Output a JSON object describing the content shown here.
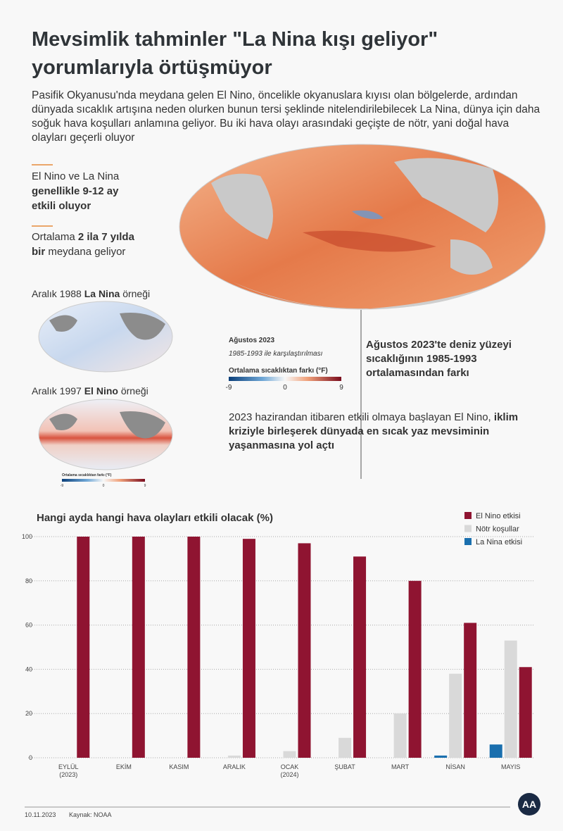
{
  "header": {
    "title": "Mevsimlik tahminler \"La Nina kışı geliyor\" yorumlarıyla örtüşmüyor",
    "intro": "Pasifik Okyanusu'nda meydana gelen El Nino, öncelikle okyanuslara kıyısı olan bölgelerde, ardından dünyada sıcaklık artışına neden olurken bunun tersi şeklinde nitelendirilebilecek La Nina, dünya için daha soğuk hava koşulları anlamına geliyor. Bu iki hava olayı arasındaki geçişte de nötr, yani doğal hava olayları geçerli oluyor"
  },
  "facts": [
    {
      "segments": [
        {
          "text": "El Nino ve La Nina",
          "bold": false
        },
        {
          "text": "genellikle 9-12 ay etkili oluyor",
          "bold": true
        }
      ]
    },
    {
      "segments": [
        {
          "text": "Ortalama",
          "bold": false
        },
        {
          "text": "2 ila 7 yılda bir",
          "bold": true
        },
        {
          "text": "meydana geliyor",
          "bold": false
        }
      ]
    }
  ],
  "examples": [
    {
      "segments": [
        {
          "text": "Aralık 1988",
          "bold": false
        },
        {
          "text": "La Nina",
          "bold": true
        },
        {
          "text": "örneği",
          "bold": false
        }
      ]
    },
    {
      "segments": [
        {
          "text": "Aralık 1997",
          "bold": false
        },
        {
          "text": "El Nino",
          "bold": true
        },
        {
          "text": "örneği",
          "bold": false
        }
      ]
    }
  ],
  "example_colorbar": {
    "label": "Ortalama sıcaklıktan farkı (°F)",
    "clim": [
      -9,
      9
    ],
    "ticks": [
      -9,
      0,
      9
    ]
  },
  "map": {
    "date": "Ağustos 2023",
    "comparison": "1985-1993 ile karşılaştırılması",
    "colorbar": {
      "label": "Ortalama sıcaklıktan farkı (°F)",
      "clim": [
        -9,
        9
      ],
      "ticks": [
        -9,
        0,
        9
      ]
    },
    "caption": "Ağustos 2023'te deniz yüzeyi sıcaklığının 1985-1993 ortalamasından farkı"
  },
  "note": {
    "segments": [
      {
        "text": "2023 hazirandan itibaren etkili olmaya başlayan El Nino,",
        "bold": false
      },
      {
        "text": "iklim kriziyle birleşerek dünyada en sıcak yaz mevsiminin yaşanmasına yol açtı",
        "bold": true
      }
    ]
  },
  "chart_data": {
    "type": "bar",
    "title": "Hangi ayda hangi hava olayları etkili olacak (%)",
    "categories": [
      "EYLÜL\n(2023)",
      "EKİM",
      "KASIM",
      "ARALIK",
      "OCAK\n(2024)",
      "ŞUBAT",
      "MART",
      "NİSAN",
      "MAYIS"
    ],
    "series": [
      {
        "name": "El Nino etkisi",
        "color": "#8f1431",
        "values": [
          100,
          100,
          100,
          99,
          97,
          91,
          80,
          61,
          41
        ]
      },
      {
        "name": "Nötr koşullar",
        "color": "#d9d9d9",
        "values": [
          0,
          0,
          0,
          1,
          3,
          9,
          20,
          38,
          53
        ]
      },
      {
        "name": "La Nina etkisi",
        "color": "#1a6fae",
        "values": [
          0,
          0,
          0,
          0,
          0,
          0,
          0,
          1,
          6
        ]
      }
    ],
    "ylim": [
      0,
      100
    ],
    "yticks": [
      0,
      20,
      40,
      60,
      80,
      100
    ],
    "grid": true
  },
  "footer": {
    "date": "10.11.2023",
    "source": "Kaynak: NOAA",
    "logo": "AA"
  }
}
